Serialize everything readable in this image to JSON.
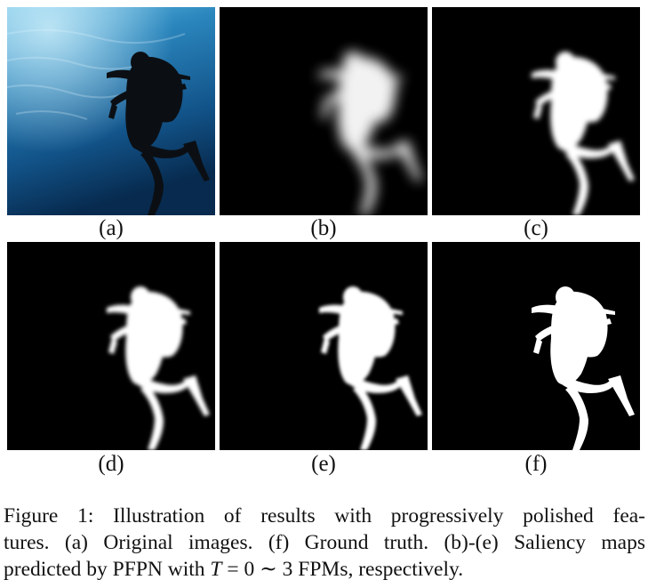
{
  "panels": [
    {
      "id": "a",
      "label": "(a)",
      "kind": "photo"
    },
    {
      "id": "b",
      "label": "(b)",
      "kind": "saliency",
      "blur": 7
    },
    {
      "id": "c",
      "label": "(c)",
      "kind": "saliency",
      "blur": 3
    },
    {
      "id": "d",
      "label": "(d)",
      "kind": "saliency",
      "blur": 2.2
    },
    {
      "id": "e",
      "label": "(e)",
      "kind": "saliency",
      "blur": 1.8
    },
    {
      "id": "f",
      "label": "(f)",
      "kind": "ground-truth",
      "blur": 0
    }
  ],
  "caption": {
    "prefix": "Figure 1:",
    "line1": "Illustration of results with progressively polished fea-",
    "line2": "tures. (a) Original images. (f) Ground truth. (b)-(e) Saliency maps",
    "line3_pre": "predicted by PFPN with ",
    "line3_T": "T",
    "line3_eq": " = 0 ∼ 3 FPMs, respectively."
  },
  "colors": {
    "water_top": "#5fb3dc",
    "water_mid": "#1f6fa6",
    "water_deep": "#0a2f55",
    "diver": "#0b0f14",
    "mask_bg": "#000000",
    "mask_fg": "#ffffff"
  }
}
